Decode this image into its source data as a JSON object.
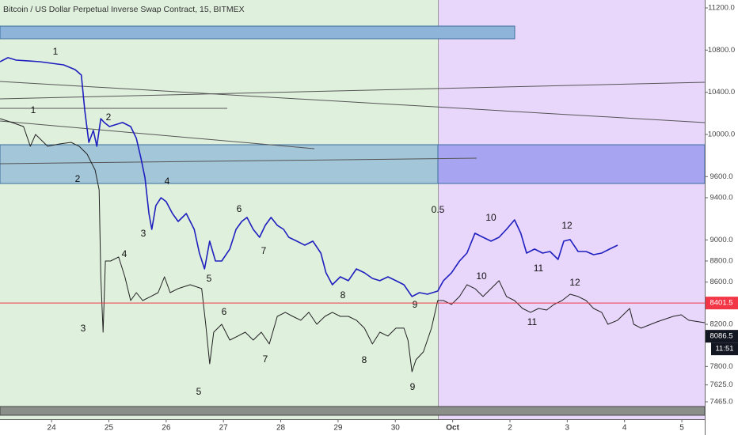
{
  "chart_data": {
    "type": "line",
    "title": "Bitcoin / US Dollar Perpetual Inverse Swap Contract, 15, BITMEX",
    "xlim": [
      23.1,
      35.4
    ],
    "xticks": [
      24,
      25,
      26,
      27,
      28,
      29,
      30,
      {
        "value": 31,
        "label": "Oct"
      },
      {
        "value": 32,
        "label": "2"
      },
      {
        "value": 33,
        "label": "3"
      },
      {
        "value": 34,
        "label": "4"
      },
      {
        "value": 35,
        "label": "5"
      }
    ],
    "ylim": [
      7300,
      11275
    ],
    "yticks": [
      {
        "value": 11200,
        "label": "11200.0"
      },
      {
        "value": 10800,
        "label": "10800.0"
      },
      {
        "value": 10400,
        "label": "10400.0"
      },
      {
        "value": 10000,
        "label": "10000.0"
      },
      {
        "value": 9600,
        "label": "9600.0"
      },
      {
        "value": 9400,
        "label": "9400.0"
      },
      {
        "value": 9000,
        "label": "9000.0"
      },
      {
        "value": 8800,
        "label": "8800.0"
      },
      {
        "value": 8600,
        "label": "8600.0"
      },
      {
        "value": 8200,
        "label": "8200.0"
      },
      {
        "value": 7800,
        "label": "7800.0"
      },
      {
        "value": 7625,
        "label": "7625.0"
      },
      {
        "value": 7465,
        "label": "7465.0"
      }
    ],
    "series": [
      {
        "color": "#1f1fbf",
        "x": [
          23.1,
          23.24,
          23.38,
          23.58,
          23.79,
          24.0,
          24.21,
          24.41,
          24.52,
          24.58,
          24.65,
          24.73,
          24.79,
          24.86,
          24.92,
          25.01,
          25.1,
          25.24,
          25.38,
          25.48,
          25.56,
          25.63,
          25.7,
          25.75,
          25.82,
          25.91,
          26.0,
          26.11,
          26.21,
          26.35,
          26.49,
          26.58,
          26.67,
          26.76,
          26.86,
          26.97,
          27.11,
          27.22,
          27.32,
          27.41,
          27.52,
          27.63,
          27.73,
          27.83,
          27.94,
          28.05,
          28.14,
          28.28,
          28.42,
          28.56,
          28.7,
          28.79,
          28.9,
          29.04,
          29.18,
          29.32,
          29.46,
          29.6,
          29.73,
          29.87,
          30.01,
          30.15,
          30.29,
          30.42,
          30.56,
          30.74,
          30.84,
          30.98,
          31.12,
          31.25,
          31.39,
          31.53,
          31.67,
          31.81,
          31.94,
          32.08,
          32.19,
          32.29,
          32.43,
          32.57,
          32.7,
          32.84,
          32.94,
          33.05,
          33.19,
          33.33,
          33.46,
          33.6,
          33.74,
          33.88
        ],
        "values": [
          10690,
          10728,
          10705,
          10698,
          10690,
          10675,
          10660,
          10615,
          10563,
          10225,
          9925,
          10038,
          9888,
          10150,
          10113,
          10075,
          10090,
          10113,
          10075,
          9963,
          9775,
          9588,
          9250,
          9100,
          9325,
          9400,
          9363,
          9250,
          9175,
          9250,
          9100,
          8875,
          8725,
          8988,
          8800,
          8800,
          8913,
          9100,
          9175,
          9213,
          9100,
          9025,
          9138,
          9213,
          9138,
          9100,
          9025,
          8988,
          8950,
          8988,
          8875,
          8688,
          8575,
          8650,
          8613,
          8725,
          8688,
          8635,
          8613,
          8650,
          8613,
          8575,
          8463,
          8500,
          8485,
          8515,
          8613,
          8688,
          8800,
          8875,
          9063,
          9025,
          8988,
          9025,
          9100,
          9190,
          9063,
          8875,
          8913,
          8875,
          8890,
          8815,
          8988,
          9003,
          8890,
          8890,
          8860,
          8875,
          8913,
          8950
        ]
      },
      {
        "color": "#222222",
        "x": [
          23.1,
          23.31,
          23.51,
          23.63,
          23.72,
          23.93,
          24.14,
          24.34,
          24.48,
          24.62,
          24.69,
          24.76,
          24.83,
          24.86,
          24.9,
          24.94,
          25.03,
          25.17,
          25.28,
          25.38,
          25.48,
          25.59,
          25.73,
          25.86,
          25.97,
          26.07,
          26.21,
          26.42,
          26.62,
          26.69,
          26.76,
          26.83,
          26.97,
          27.11,
          27.25,
          27.38,
          27.52,
          27.66,
          27.8,
          27.94,
          28.08,
          28.21,
          28.35,
          28.49,
          28.63,
          28.77,
          28.9,
          29.04,
          29.18,
          29.32,
          29.46,
          29.6,
          29.73,
          29.87,
          30.01,
          30.15,
          30.22,
          30.29,
          30.36,
          30.49,
          30.63,
          30.74,
          30.84,
          30.98,
          31.12,
          31.25,
          31.39,
          31.53,
          31.67,
          31.81,
          31.94,
          32.08,
          32.22,
          32.36,
          32.5,
          32.64,
          32.77,
          32.91,
          33.05,
          33.19,
          33.33,
          33.46,
          33.6,
          33.71,
          33.88,
          34.09,
          34.16,
          34.29,
          34.57,
          34.85,
          34.99,
          35.12,
          35.4
        ],
        "values": [
          10150,
          10113,
          10075,
          9888,
          10000,
          9888,
          9910,
          9925,
          9888,
          9813,
          9738,
          9663,
          9475,
          8650,
          8125,
          8800,
          8800,
          8838,
          8650,
          8425,
          8500,
          8425,
          8463,
          8500,
          8650,
          8500,
          8538,
          8575,
          8538,
          8200,
          7825,
          8125,
          8200,
          8050,
          8088,
          8125,
          8050,
          8125,
          8013,
          8275,
          8313,
          8275,
          8238,
          8313,
          8200,
          8275,
          8313,
          8275,
          8275,
          8238,
          8163,
          8013,
          8125,
          8088,
          8163,
          8163,
          8050,
          7750,
          7863,
          7938,
          8163,
          8425,
          8425,
          8388,
          8463,
          8575,
          8538,
          8463,
          8538,
          8613,
          8463,
          8425,
          8350,
          8313,
          8350,
          8335,
          8388,
          8425,
          8485,
          8463,
          8425,
          8350,
          8313,
          8200,
          8238,
          8350,
          8200,
          8163,
          8223,
          8275,
          8290,
          8238,
          8215
        ]
      }
    ],
    "price_lines": [
      {
        "value": 8401.5,
        "color": "#f23645"
      },
      {
        "value": 8086.5,
        "color": "#131722",
        "countdown": "11:51"
      }
    ],
    "annotations": [
      "1",
      "1",
      "2",
      "2",
      "3",
      "4",
      "4",
      "3",
      "5",
      "6",
      "7",
      "6",
      "5",
      "7",
      "8",
      "8",
      "9",
      "9",
      "10",
      "10",
      "11",
      "11",
      "12",
      "12",
      "0.5"
    ]
  }
}
